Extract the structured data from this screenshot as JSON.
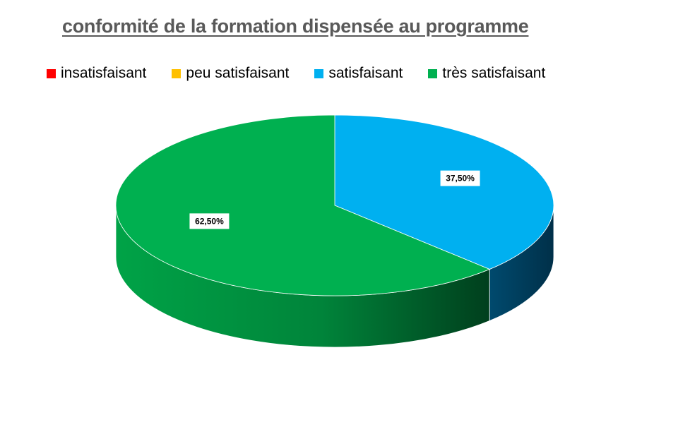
{
  "chart_data": {
    "type": "pie",
    "title": "conformité de la formation dispensée au programme",
    "legend_position": "top",
    "categories": [
      "insatisfaisant",
      "peu satisfaisant",
      "satisfaisant",
      "très satisfaisant"
    ],
    "values": [
      0,
      0,
      37.5,
      62.5
    ],
    "data_labels": [
      "",
      "",
      "37,50%",
      "62,50%"
    ],
    "colors": [
      "#ff0000",
      "#ffc000",
      "#00b0f0",
      "#00b050"
    ],
    "side_colors": [
      "#b30000",
      "#b38600",
      "#003f5c",
      "#004d25"
    ],
    "three_d": true
  }
}
